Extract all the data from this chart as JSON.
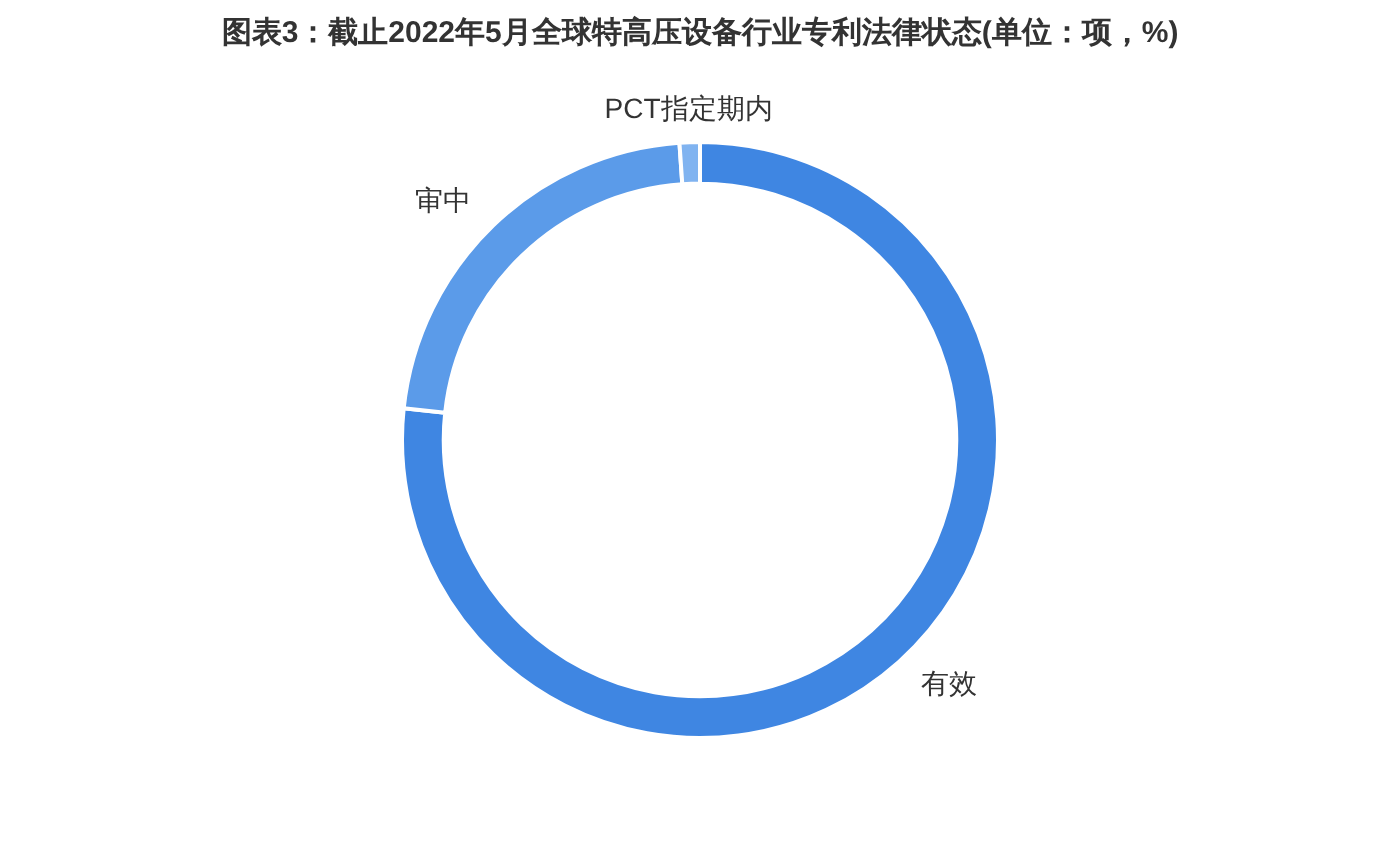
{
  "chart_data": {
    "type": "donut",
    "title": "图表3：截止2022年5月全球特高压设备行业专利法律状态(单位：项，%)",
    "categories": [
      "有效",
      "审中",
      "PCT指定期内"
    ],
    "values": [
      76.7,
      22.2,
      1.1
    ],
    "colors": [
      "#3f86e2",
      "#5b9be9",
      "#80b3f0"
    ],
    "legend": false
  }
}
